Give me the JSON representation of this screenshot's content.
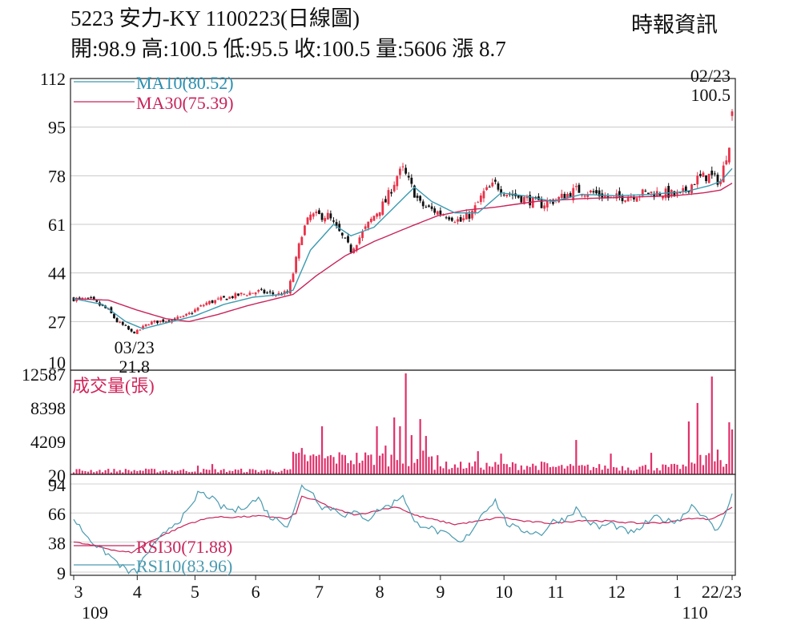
{
  "header": {
    "title": "5223  安力-KY 1100223(日線圖)",
    "quote": "開:98.9 高:100.5 低:95.5 收:100.5 量:5606 漲 8.7",
    "source": "時報資訊"
  },
  "colors": {
    "up": "#e8334a",
    "down": "#111111",
    "ma10": "#3a9ab0",
    "ma30": "#c8245a",
    "volume": "#e0306a",
    "rsi30": "#c8245a",
    "rsi10": "#4a9bb0",
    "legend_ma10": "#2a8fb0",
    "legend_ma30": "#c8245a",
    "legend_vol": "#d0245a"
  },
  "chart_data": [
    {
      "id": "price",
      "type": "candlestick",
      "y_ticks": [
        "112",
        "95",
        "78",
        "61",
        "44",
        "27",
        "10"
      ],
      "ylim": [
        10,
        112
      ],
      "legend": [
        {
          "name": "MA10(80.52)",
          "color_key": "ma10"
        },
        {
          "name": "MA30(75.39)",
          "color_key": "ma30"
        }
      ],
      "annotations": [
        {
          "date": "02/23",
          "value": "100.5",
          "position": "high"
        },
        {
          "date": "03/23",
          "value": "21.8",
          "position": "low"
        }
      ],
      "close_anchors": [
        [
          0,
          35
        ],
        [
          6,
          34.5
        ],
        [
          12,
          31
        ],
        [
          15,
          27
        ],
        [
          18,
          25
        ],
        [
          20,
          23.2
        ],
        [
          22,
          23.5
        ],
        [
          26,
          26.5
        ],
        [
          32,
          27.5
        ],
        [
          38,
          28.5
        ],
        [
          42,
          31
        ],
        [
          46,
          33.5
        ],
        [
          52,
          35
        ],
        [
          58,
          36.5
        ],
        [
          64,
          37.5
        ],
        [
          70,
          36.5
        ],
        [
          74,
          37
        ],
        [
          76,
          44
        ],
        [
          79,
          58
        ],
        [
          82,
          64
        ],
        [
          88,
          64
        ],
        [
          92,
          58
        ],
        [
          96,
          52
        ],
        [
          100,
          58
        ],
        [
          104,
          64
        ],
        [
          108,
          69
        ],
        [
          112,
          78
        ],
        [
          114,
          80
        ],
        [
          116,
          76
        ],
        [
          120,
          68
        ],
        [
          124,
          66
        ],
        [
          130,
          64
        ],
        [
          134,
          62
        ],
        [
          138,
          65
        ],
        [
          142,
          72
        ],
        [
          146,
          75
        ],
        [
          150,
          72
        ],
        [
          156,
          70
        ],
        [
          162,
          68
        ],
        [
          168,
          70
        ],
        [
          174,
          73
        ],
        [
          180,
          72
        ],
        [
          186,
          70
        ],
        [
          192,
          71
        ],
        [
          198,
          72
        ],
        [
          204,
          72
        ],
        [
          210,
          71
        ],
        [
          216,
          77
        ],
        [
          220,
          78
        ],
        [
          224,
          76
        ],
        [
          227,
          90
        ],
        [
          228,
          100.5
        ]
      ],
      "ma10_anchors": [
        [
          0,
          35
        ],
        [
          10,
          33
        ],
        [
          18,
          27
        ],
        [
          24,
          24.5
        ],
        [
          32,
          26.5
        ],
        [
          42,
          29
        ],
        [
          52,
          33
        ],
        [
          62,
          35.5
        ],
        [
          72,
          36.5
        ],
        [
          76,
          38
        ],
        [
          82,
          52
        ],
        [
          90,
          61
        ],
        [
          96,
          57
        ],
        [
          104,
          60
        ],
        [
          112,
          68
        ],
        [
          118,
          74
        ],
        [
          124,
          69
        ],
        [
          132,
          65
        ],
        [
          140,
          65
        ],
        [
          148,
          72
        ],
        [
          156,
          71
        ],
        [
          166,
          69
        ],
        [
          176,
          71.5
        ],
        [
          188,
          71
        ],
        [
          200,
          71.5
        ],
        [
          212,
          72.5
        ],
        [
          220,
          74.5
        ],
        [
          224,
          76
        ],
        [
          228,
          80.52
        ]
      ],
      "ma30_anchors": [
        [
          0,
          35
        ],
        [
          12,
          34.5
        ],
        [
          22,
          31
        ],
        [
          32,
          28
        ],
        [
          40,
          27
        ],
        [
          50,
          29.5
        ],
        [
          60,
          32.5
        ],
        [
          70,
          35
        ],
        [
          76,
          36.5
        ],
        [
          84,
          43
        ],
        [
          94,
          50
        ],
        [
          104,
          55
        ],
        [
          116,
          60
        ],
        [
          126,
          64
        ],
        [
          136,
          66
        ],
        [
          146,
          67
        ],
        [
          160,
          69
        ],
        [
          176,
          70
        ],
        [
          192,
          70.5
        ],
        [
          208,
          71
        ],
        [
          218,
          72
        ],
        [
          224,
          73
        ],
        [
          228,
          75.39
        ]
      ]
    },
    {
      "id": "volume",
      "type": "bar",
      "title": "成交量(張)",
      "y_ticks": [
        "12587",
        "8398",
        "4209",
        "20"
      ],
      "ylim": [
        20,
        12587
      ],
      "baseline": 700,
      "baseline_regimes": [
        [
          0,
          500
        ],
        [
          76,
          2000
        ],
        [
          125,
          1100
        ],
        [
          165,
          900
        ],
        [
          210,
          1000
        ],
        [
          215,
          1800
        ]
      ],
      "spikes": [
        [
          43,
          1100
        ],
        [
          48,
          1300
        ],
        [
          77,
          2600
        ],
        [
          79,
          3300
        ],
        [
          84,
          2300
        ],
        [
          86,
          6000
        ],
        [
          94,
          2400
        ],
        [
          105,
          6000
        ],
        [
          108,
          3600
        ],
        [
          111,
          7100
        ],
        [
          113,
          6000
        ],
        [
          115,
          12587
        ],
        [
          117,
          4900
        ],
        [
          120,
          6900
        ],
        [
          122,
          4800
        ],
        [
          126,
          2400
        ],
        [
          140,
          2900
        ],
        [
          148,
          2600
        ],
        [
          174,
          4300
        ],
        [
          186,
          2600
        ],
        [
          200,
          2700
        ],
        [
          213,
          6600
        ],
        [
          216,
          8900
        ],
        [
          219,
          2400
        ],
        [
          221,
          12200
        ],
        [
          223,
          3100
        ],
        [
          227,
          6500
        ],
        [
          228,
          5606
        ]
      ]
    },
    {
      "id": "rsi",
      "type": "line",
      "y_ticks": [
        "94",
        "66",
        "38",
        "9"
      ],
      "ylim": [
        9,
        94
      ],
      "series": [
        {
          "name": "RSI30(71.88)",
          "color_key": "rsi30",
          "anchors": [
            [
              0,
              38
            ],
            [
              8,
              34
            ],
            [
              16,
              29
            ],
            [
              20,
              28
            ],
            [
              26,
              38
            ],
            [
              32,
              46
            ],
            [
              40,
              56
            ],
            [
              48,
              62
            ],
            [
              56,
              62
            ],
            [
              64,
              63
            ],
            [
              70,
              62
            ],
            [
              74,
              60
            ],
            [
              77,
              66
            ],
            [
              79,
              82
            ],
            [
              84,
              78
            ],
            [
              90,
              70
            ],
            [
              98,
              64
            ],
            [
              106,
              69
            ],
            [
              112,
              72
            ],
            [
              118,
              64
            ],
            [
              124,
              60
            ],
            [
              132,
              55
            ],
            [
              140,
              58
            ],
            [
              148,
              62
            ],
            [
              156,
              58
            ],
            [
              166,
              56
            ],
            [
              176,
              59
            ],
            [
              186,
              58
            ],
            [
              196,
              56
            ],
            [
              206,
              57
            ],
            [
              214,
              61
            ],
            [
              220,
              60
            ],
            [
              224,
              64
            ],
            [
              228,
              71.88
            ]
          ]
        },
        {
          "name": "RSI10(83.96)",
          "color_key": "rsi10",
          "anchors": [
            [
              0,
              60
            ],
            [
              4,
              46
            ],
            [
              8,
              34
            ],
            [
              12,
              26
            ],
            [
              16,
              16
            ],
            [
              19,
              9
            ],
            [
              22,
              10
            ],
            [
              25,
              26
            ],
            [
              29,
              38
            ],
            [
              33,
              52
            ],
            [
              37,
              60
            ],
            [
              41,
              72
            ],
            [
              43,
              86
            ],
            [
              47,
              82
            ],
            [
              51,
              72
            ],
            [
              56,
              68
            ],
            [
              60,
              74
            ],
            [
              64,
              80
            ],
            [
              68,
              62
            ],
            [
              72,
              58
            ],
            [
              74,
              54
            ],
            [
              77,
              74
            ],
            [
              79,
              92
            ],
            [
              82,
              88
            ],
            [
              86,
              72
            ],
            [
              90,
              70
            ],
            [
              94,
              64
            ],
            [
              98,
              66
            ],
            [
              102,
              60
            ],
            [
              106,
              70
            ],
            [
              110,
              74
            ],
            [
              114,
              84
            ],
            [
              118,
              56
            ],
            [
              122,
              54
            ],
            [
              126,
              48
            ],
            [
              130,
              44
            ],
            [
              134,
              36
            ],
            [
              138,
              50
            ],
            [
              142,
              68
            ],
            [
              146,
              78
            ],
            [
              150,
              56
            ],
            [
              154,
              50
            ],
            [
              158,
              48
            ],
            [
              162,
              46
            ],
            [
              166,
              58
            ],
            [
              170,
              60
            ],
            [
              174,
              70
            ],
            [
              178,
              58
            ],
            [
              182,
              52
            ],
            [
              186,
              56
            ],
            [
              190,
              50
            ],
            [
              194,
              46
            ],
            [
              198,
              56
            ],
            [
              202,
              62
            ],
            [
              206,
              58
            ],
            [
              210,
              60
            ],
            [
              214,
              74
            ],
            [
              218,
              64
            ],
            [
              222,
              50
            ],
            [
              224,
              52
            ],
            [
              226,
              70
            ],
            [
              228,
              83.96
            ]
          ]
        }
      ]
    }
  ],
  "x_axis": {
    "labels": [
      "3",
      "4",
      "5",
      "6",
      "7",
      "8",
      "9",
      "10",
      "11",
      "12",
      "1",
      "22/23"
    ],
    "label_days": [
      0,
      22,
      42,
      63,
      85,
      106,
      127,
      149,
      167,
      188,
      209,
      228
    ],
    "year_labels": [
      {
        "text": "109",
        "day": 0
      },
      {
        "text": "110",
        "day": 209
      }
    ]
  }
}
